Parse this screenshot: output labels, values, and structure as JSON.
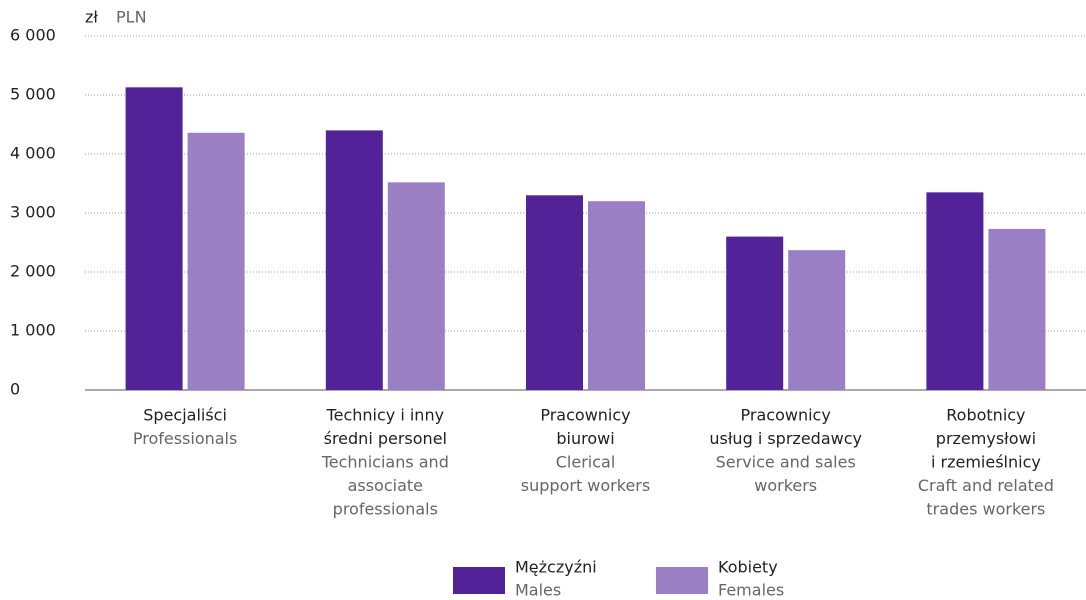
{
  "chart_data": {
    "type": "bar",
    "y_unit": {
      "pl": "zł",
      "en": "PLN"
    },
    "categories": [
      {
        "pl": [
          "Specjaliści"
        ],
        "en": [
          "Professionals"
        ]
      },
      {
        "pl": [
          "Technicy i inny",
          "średni personel"
        ],
        "en": [
          "Technicians and",
          "associate",
          "professionals"
        ]
      },
      {
        "pl": [
          "Pracownicy",
          "biurowi"
        ],
        "en": [
          "Clerical",
          "support workers"
        ]
      },
      {
        "pl": [
          "Pracownicy",
          "usług i sprzedawcy"
        ],
        "en": [
          "Service and sales",
          "workers"
        ]
      },
      {
        "pl": [
          "Robotnicy",
          "przemysłowi",
          "i rzemieślnicy"
        ],
        "en": [
          "Craft and related",
          "trades workers"
        ]
      }
    ],
    "series": [
      {
        "name": "Mężczyźni",
        "name_en": "Males",
        "color": "#522398",
        "values": [
          5130,
          4400,
          3300,
          2600,
          3350
        ]
      },
      {
        "name": "Kobiety",
        "name_en": "Females",
        "color": "#9b7fc4",
        "values": [
          4360,
          3520,
          3200,
          2370,
          2730
        ]
      }
    ],
    "ylim": [
      0,
      6000
    ],
    "yticks": [
      0,
      {
        "value": 1000,
        "label": "1 000"
      },
      {
        "value": 2000,
        "label": "2 000"
      },
      {
        "value": 3000,
        "label": "3 000"
      },
      {
        "value": 4000,
        "label": "4 000"
      },
      {
        "value": 5000,
        "label": "5 000"
      },
      {
        "value": 6000,
        "label": "6 000"
      }
    ],
    "grid": true
  }
}
